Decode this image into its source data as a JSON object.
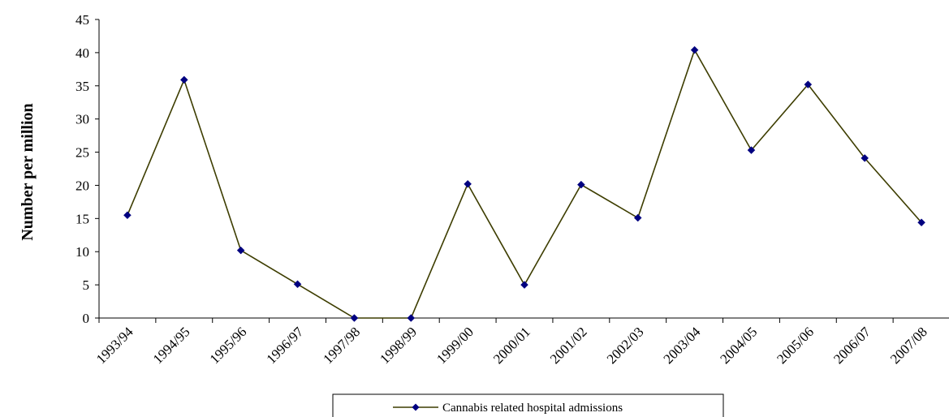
{
  "chart_data": {
    "type": "line",
    "title": "",
    "xlabel": "",
    "ylabel": "Number per million",
    "ylim": [
      0,
      45
    ],
    "yticks": [
      0,
      5,
      10,
      15,
      20,
      25,
      30,
      35,
      40,
      45
    ],
    "grid": false,
    "legend_position": "bottom",
    "categories": [
      "1993/94",
      "1994/95",
      "1995/96",
      "1996/97",
      "1997/98",
      "1998/99",
      "1999/00",
      "2000/01",
      "2001/02",
      "2002/03",
      "2003/04",
      "2004/05",
      "2005/06",
      "2006/07",
      "2007/08"
    ],
    "series": [
      {
        "name": "Cannabis related hospital admissions",
        "values": [
          15.5,
          35.9,
          10.2,
          5.1,
          0,
          0,
          20.2,
          5.0,
          20.1,
          15.1,
          40.4,
          25.3,
          35.2,
          24.1,
          14.4
        ],
        "line_color": "#3d3d00",
        "marker_color": "#000080"
      }
    ]
  }
}
